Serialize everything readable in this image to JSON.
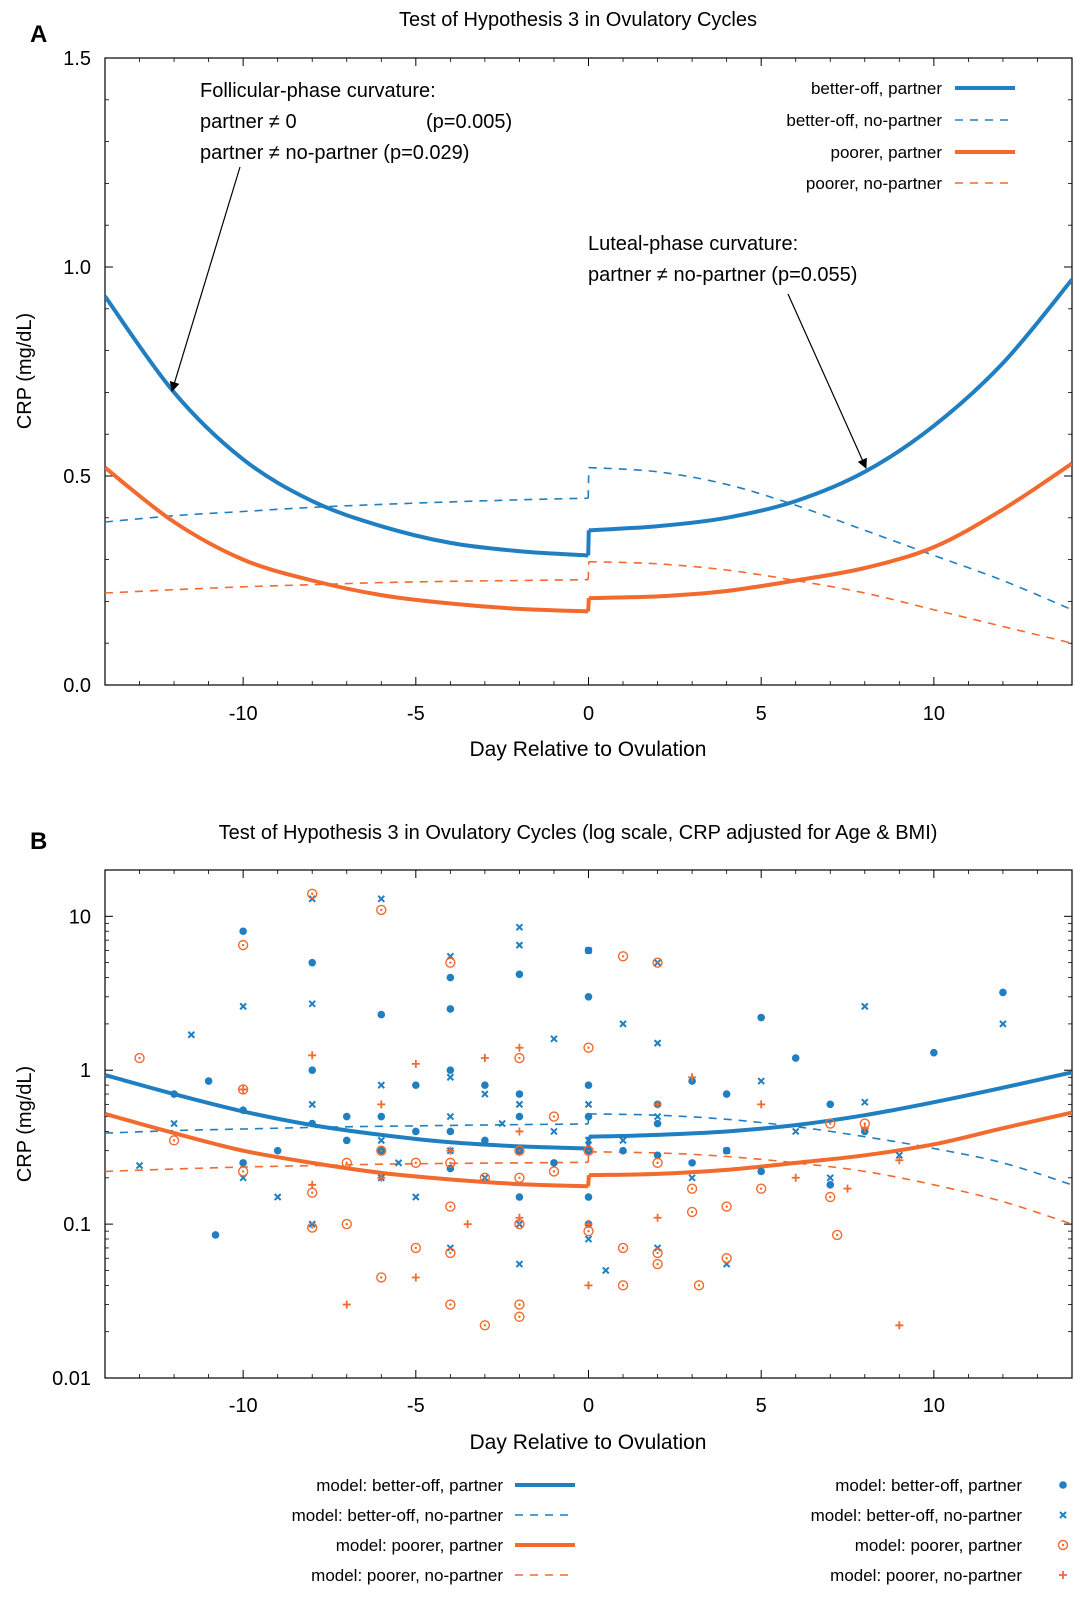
{
  "colors": {
    "blue": "#1f7fc1",
    "orange": "#f26a2e"
  },
  "chart_data": [
    {
      "panel_label": "A",
      "type": "line",
      "title": "Test of Hypothesis 3 in Ovulatory Cycles",
      "xlabel": "Day Relative to Ovulation",
      "ylabel": "CRP (mg/dL)",
      "xlim": [
        -14,
        14
      ],
      "ylim": [
        0,
        1.5
      ],
      "xscale": "linear",
      "yscale": "linear",
      "xticks": [
        -10,
        -5,
        0,
        5,
        10
      ],
      "xticklabels": [
        "-10",
        "-5",
        "0",
        "5",
        "10"
      ],
      "yticks": [
        0,
        0.5,
        1.0,
        1.5
      ],
      "yticklabels": [
        "0.0",
        "0.5",
        "1.0",
        "1.5"
      ],
      "grid": false,
      "legend_position": "top-right",
      "series": [
        {
          "name": "better-off, partner",
          "color": "blue",
          "style": "solid",
          "x": [
            -14,
            -12,
            -10,
            -8,
            -6,
            -4,
            -2,
            -0.01,
            0.01,
            2,
            4,
            6,
            8,
            10,
            12,
            14
          ],
          "y": [
            0.93,
            0.7,
            0.54,
            0.44,
            0.38,
            0.34,
            0.32,
            0.31,
            0.37,
            0.38,
            0.4,
            0.44,
            0.51,
            0.62,
            0.77,
            0.97
          ]
        },
        {
          "name": "better-off, no-partner",
          "color": "blue",
          "style": "dashed",
          "x": [
            -14,
            -12,
            -10,
            -8,
            -6,
            -4,
            -2,
            -0.01,
            0.01,
            2,
            4,
            6,
            8,
            10,
            12,
            14
          ],
          "y": [
            0.39,
            0.405,
            0.415,
            0.425,
            0.432,
            0.438,
            0.443,
            0.447,
            0.52,
            0.51,
            0.48,
            0.43,
            0.37,
            0.31,
            0.25,
            0.18
          ]
        },
        {
          "name": "poorer, partner",
          "color": "orange",
          "style": "solid",
          "x": [
            -14,
            -12,
            -10,
            -8,
            -6,
            -4,
            -2,
            -0.01,
            0.01,
            2,
            4,
            6,
            8,
            10,
            12,
            14
          ],
          "y": [
            0.52,
            0.39,
            0.3,
            0.25,
            0.215,
            0.195,
            0.182,
            0.176,
            0.208,
            0.212,
            0.225,
            0.25,
            0.28,
            0.33,
            0.42,
            0.53
          ]
        },
        {
          "name": "poorer, no-partner",
          "color": "orange",
          "style": "dashed",
          "x": [
            -14,
            -12,
            -10,
            -8,
            -6,
            -4,
            -2,
            -0.01,
            0.01,
            2,
            4,
            6,
            8,
            10,
            12,
            14
          ],
          "y": [
            0.22,
            0.228,
            0.235,
            0.24,
            0.245,
            0.248,
            0.25,
            0.252,
            0.295,
            0.29,
            0.275,
            0.25,
            0.22,
            0.18,
            0.14,
            0.1
          ]
        }
      ],
      "annotations": [
        {
          "lines": [
            "Follicular-phase curvature:",
            "partner ≠ 0",
            "partner ≠ no-partner (p=0.029)"
          ],
          "pvalue_line2": "(p=0.005)",
          "arrow_to": {
            "x": -12,
            "y": 0.7
          }
        },
        {
          "lines": [
            "Luteal-phase curvature:",
            "partner ≠ no-partner (p=0.055)"
          ],
          "arrow_to": {
            "x": 8,
            "y": 0.51
          }
        }
      ]
    },
    {
      "panel_label": "B",
      "type": "scatter",
      "title": "Test of Hypothesis 3 in Ovulatory Cycles (log scale, CRP adjusted for Age & BMI)",
      "xlabel": "Day Relative to Ovulation",
      "ylabel": "CRP (mg/dL)",
      "xlim": [
        -14,
        14
      ],
      "ylim": [
        0.01,
        20
      ],
      "xscale": "linear",
      "yscale": "log",
      "xticks": [
        -10,
        -5,
        0,
        5,
        10
      ],
      "xticklabels": [
        "-10",
        "-5",
        "0",
        "5",
        "10"
      ],
      "yticks": [
        0.01,
        0.1,
        1,
        10
      ],
      "yticklabels": [
        "0.01",
        "0.1",
        "1",
        "10"
      ],
      "grid": false,
      "legend_position": "bottom, outside plot",
      "model_series": [
        {
          "name": "model: better-off, partner",
          "color": "blue",
          "style": "solid",
          "ref": 0
        },
        {
          "name": "model: better-off, no-partner",
          "color": "blue",
          "style": "dashed",
          "ref": 1
        },
        {
          "name": "model: poorer, partner",
          "color": "orange",
          "style": "solid",
          "ref": 2
        },
        {
          "name": "model: poorer, no-partner",
          "color": "orange",
          "style": "dashed",
          "ref": 3
        }
      ],
      "point_series": [
        {
          "name": "model: better-off, partner",
          "color": "blue",
          "marker": "dot",
          "points": [
            [
              -12,
              0.7
            ],
            [
              -11,
              0.85
            ],
            [
              -10,
              8
            ],
            [
              -10,
              0.55
            ],
            [
              -10,
              0.25
            ],
            [
              -9,
              0.3
            ],
            [
              -8,
              5
            ],
            [
              -8,
              1
            ],
            [
              -8,
              0.45
            ],
            [
              -7,
              0.5
            ],
            [
              -7,
              0.35
            ],
            [
              -6,
              2.3
            ],
            [
              -6,
              0.5
            ],
            [
              -6,
              0.3
            ],
            [
              -5,
              0.8
            ],
            [
              -5,
              0.4
            ],
            [
              -4,
              4
            ],
            [
              -4,
              2.5
            ],
            [
              -4,
              1
            ],
            [
              -4,
              0.4
            ],
            [
              -4,
              0.23
            ],
            [
              -3,
              0.8
            ],
            [
              -3,
              0.35
            ],
            [
              -2,
              4.2
            ],
            [
              -2,
              0.7
            ],
            [
              -2,
              0.5
            ],
            [
              -2,
              0.3
            ],
            [
              -2,
              0.15
            ],
            [
              -1,
              0.25
            ],
            [
              0,
              6
            ],
            [
              0,
              3
            ],
            [
              0,
              0.8
            ],
            [
              0,
              0.5
            ],
            [
              0,
              0.3
            ],
            [
              0,
              0.15
            ],
            [
              0,
              0.1
            ],
            [
              2,
              0.6
            ],
            [
              2,
              0.28
            ],
            [
              3,
              0.85
            ],
            [
              3,
              0.25
            ],
            [
              4,
              0.7
            ],
            [
              4,
              0.3
            ],
            [
              5,
              2.2
            ],
            [
              5,
              0.22
            ],
            [
              6,
              1.2
            ],
            [
              7,
              0.6
            ],
            [
              7,
              0.18
            ],
            [
              8,
              0.4
            ],
            [
              10,
              1.3
            ],
            [
              12,
              3.2
            ],
            [
              -10.8,
              0.085
            ],
            [
              1,
              0.3
            ],
            [
              2,
              0.45
            ]
          ]
        },
        {
          "name": "model: better-off, no-partner",
          "color": "blue",
          "marker": "x",
          "points": [
            [
              -13,
              0.24
            ],
            [
              -12,
              0.45
            ],
            [
              -11.5,
              1.7
            ],
            [
              -10,
              2.6
            ],
            [
              -10,
              0.2
            ],
            [
              -9,
              0.15
            ],
            [
              -8,
              13
            ],
            [
              -8,
              2.7
            ],
            [
              -8,
              0.6
            ],
            [
              -8,
              0.1
            ],
            [
              -6,
              13
            ],
            [
              -6,
              0.8
            ],
            [
              -6,
              0.35
            ],
            [
              -6,
              0.2
            ],
            [
              -5,
              0.15
            ],
            [
              -4,
              5.5
            ],
            [
              -4,
              0.9
            ],
            [
              -4,
              0.5
            ],
            [
              -4,
              0.3
            ],
            [
              -4,
              0.07
            ],
            [
              -3,
              0.7
            ],
            [
              -3,
              0.2
            ],
            [
              -2,
              8.5
            ],
            [
              -2,
              6.5
            ],
            [
              -2,
              0.6
            ],
            [
              -2,
              0.3
            ],
            [
              -2,
              0.1
            ],
            [
              -2,
              0.055
            ],
            [
              -1,
              1.6
            ],
            [
              -1,
              0.4
            ],
            [
              0,
              6
            ],
            [
              0,
              0.6
            ],
            [
              0,
              0.35
            ],
            [
              0,
              0.08
            ],
            [
              1,
              2
            ],
            [
              1,
              0.35
            ],
            [
              2,
              5
            ],
            [
              2,
              1.5
            ],
            [
              2,
              0.5
            ],
            [
              2,
              0.07
            ],
            [
              3,
              0.2
            ],
            [
              4,
              0.055
            ],
            [
              4,
              0.3
            ],
            [
              5,
              0.85
            ],
            [
              6,
              0.4
            ],
            [
              7,
              0.2
            ],
            [
              8,
              2.6
            ],
            [
              8,
              0.62
            ],
            [
              9,
              0.28
            ],
            [
              12,
              2
            ],
            [
              -5.5,
              0.25
            ],
            [
              0.5,
              0.05
            ],
            [
              -2.5,
              0.45
            ]
          ]
        },
        {
          "name": "model: poorer, partner",
          "color": "orange",
          "marker": "circle",
          "points": [
            [
              -13,
              1.2
            ],
            [
              -12,
              0.35
            ],
            [
              -10,
              6.5
            ],
            [
              -10,
              0.75
            ],
            [
              -10,
              0.22
            ],
            [
              -8,
              14
            ],
            [
              -8,
              0.16
            ],
            [
              -8,
              0.095
            ],
            [
              -7,
              0.25
            ],
            [
              -7,
              0.1
            ],
            [
              -6,
              11
            ],
            [
              -6,
              0.3
            ],
            [
              -6,
              0.045
            ],
            [
              -5,
              0.25
            ],
            [
              -5,
              0.07
            ],
            [
              -4,
              5
            ],
            [
              -4,
              0.25
            ],
            [
              -4,
              0.13
            ],
            [
              -4,
              0.065
            ],
            [
              -4,
              0.03
            ],
            [
              -3,
              0.2
            ],
            [
              -3,
              0.022
            ],
            [
              -2,
              1.2
            ],
            [
              -2,
              0.3
            ],
            [
              -2,
              0.2
            ],
            [
              -2,
              0.1
            ],
            [
              -2,
              0.03
            ],
            [
              -2,
              0.025
            ],
            [
              -1,
              0.5
            ],
            [
              -1,
              0.22
            ],
            [
              0,
              1.4
            ],
            [
              0,
              0.3
            ],
            [
              0,
              0.09
            ],
            [
              1,
              5.5
            ],
            [
              1,
              0.07
            ],
            [
              1,
              0.04
            ],
            [
              2,
              5
            ],
            [
              2,
              0.25
            ],
            [
              2,
              0.065
            ],
            [
              2,
              0.055
            ],
            [
              3,
              0.17
            ],
            [
              3,
              0.12
            ],
            [
              3.2,
              0.04
            ],
            [
              4,
              0.13
            ],
            [
              4,
              0.06
            ],
            [
              5,
              0.17
            ],
            [
              7,
              0.45
            ],
            [
              7,
              0.15
            ],
            [
              7.2,
              0.085
            ],
            [
              8,
              0.45
            ]
          ]
        },
        {
          "name": "model: poorer, no-partner",
          "color": "orange",
          "marker": "plus",
          "points": [
            [
              -10,
              0.75
            ],
            [
              -8,
              1.25
            ],
            [
              -8,
              0.18
            ],
            [
              -7,
              0.03
            ],
            [
              -6,
              0.6
            ],
            [
              -6,
              0.2
            ],
            [
              -5,
              1.1
            ],
            [
              -5,
              0.045
            ],
            [
              -4,
              0.3
            ],
            [
              -3,
              1.2
            ],
            [
              -2,
              1.4
            ],
            [
              -2,
              0.4
            ],
            [
              -2,
              0.11
            ],
            [
              0,
              0.1
            ],
            [
              0,
              0.04
            ],
            [
              2,
              0.6
            ],
            [
              2,
              0.11
            ],
            [
              3,
              0.9
            ],
            [
              5,
              0.6
            ],
            [
              6,
              0.2
            ],
            [
              7.5,
              0.17
            ],
            [
              8,
              0.42
            ],
            [
              9,
              0.26
            ],
            [
              9,
              0.022
            ],
            [
              -3.5,
              0.1
            ]
          ]
        }
      ]
    }
  ]
}
